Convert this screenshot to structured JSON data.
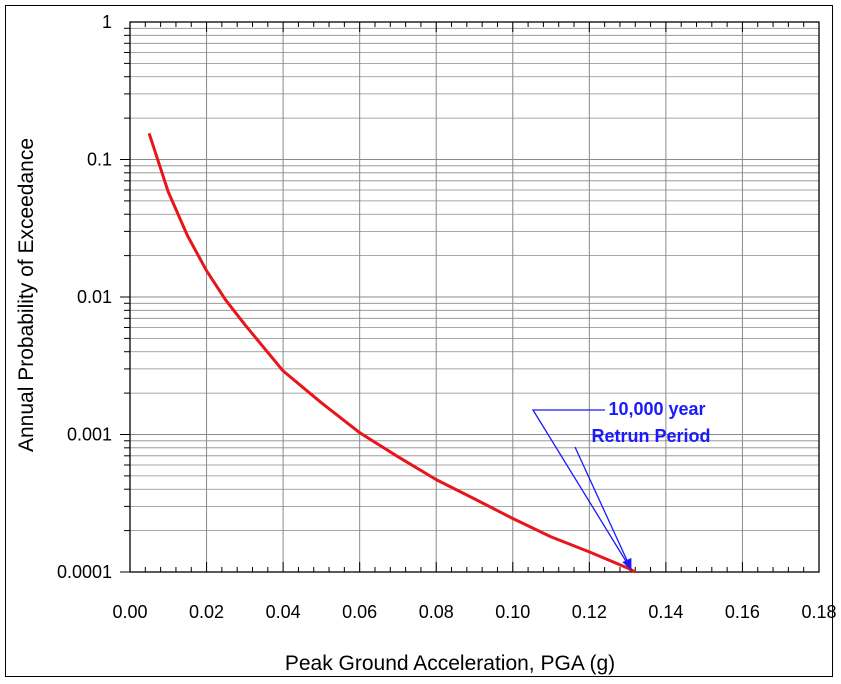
{
  "chart_data": {
    "type": "line",
    "xlabel": "Peak Ground Acceleration, PGA  (g)",
    "ylabel": "Annual Probability of Exceedance",
    "xlim": [
      0,
      0.18
    ],
    "ylim": [
      0.0001,
      1
    ],
    "yscale": "log",
    "grid": true,
    "x_ticks": [
      "0.00",
      "0.02",
      "0.04",
      "0.06",
      "0.08",
      "0.10",
      "0.12",
      "0.14",
      "0.16",
      "0.18"
    ],
    "y_ticks": [
      "0.0001",
      "0.001",
      "0.01",
      "0.1",
      "1"
    ],
    "series": [
      {
        "color": "#e8151b",
        "x": [
          0.005,
          0.01,
          0.015,
          0.02,
          0.025,
          0.03,
          0.04,
          0.05,
          0.06,
          0.07,
          0.08,
          0.09,
          0.1,
          0.11,
          0.12,
          0.13,
          0.132
        ],
        "y": [
          0.155,
          0.058,
          0.028,
          0.0155,
          0.0095,
          0.0063,
          0.0029,
          0.0017,
          0.00103,
          0.00069,
          0.00047,
          0.00034,
          0.000245,
          0.00018,
          0.00014,
          0.000107,
          0.0001
        ]
      }
    ],
    "annotation": {
      "lines": [
        "10,000 year",
        "Retrun Period"
      ],
      "color": "#1a1aff",
      "points_to": [
        0.131,
        0.0001
      ]
    }
  }
}
